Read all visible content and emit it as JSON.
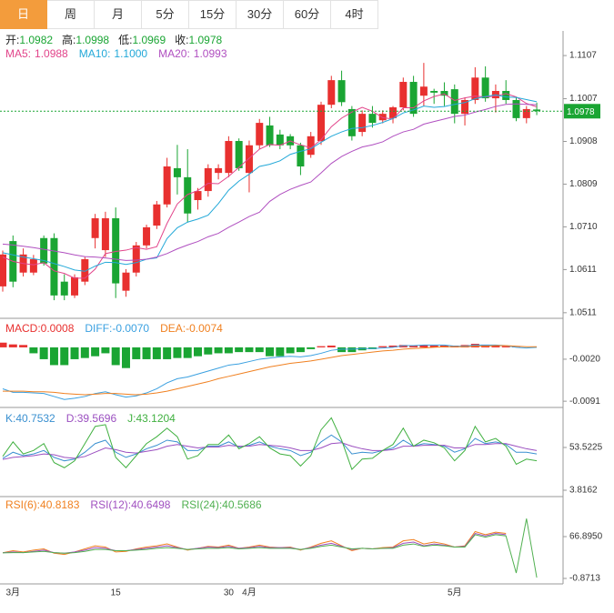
{
  "tabs": [
    "日",
    "周",
    "月",
    "5分",
    "15分",
    "30分",
    "60分",
    "4时"
  ],
  "active_tab": 0,
  "chart_data": [
    {
      "type": "candlestick",
      "categories": [
        null,
        "3月",
        null,
        null,
        null,
        null,
        null,
        null,
        null,
        null,
        null,
        "15",
        null,
        null,
        null,
        null,
        null,
        null,
        null,
        null,
        null,
        null,
        "30",
        null,
        "4月",
        null,
        null,
        null,
        null,
        null,
        null,
        null,
        null,
        null,
        null,
        null,
        null,
        null,
        null,
        null,
        null,
        null,
        null,
        null,
        "5月",
        null,
        null,
        null,
        null,
        null,
        null,
        null,
        null
      ],
      "ohlc_readout": [
        {
          "label": "开:",
          "value": "1.0982"
        },
        {
          "label": "高:",
          "value": "1.0998"
        },
        {
          "label": "低:",
          "value": "1.0969"
        },
        {
          "label": "收:",
          "value": "1.0978"
        }
      ],
      "up_color": "#e8302f",
      "down_color": "#1aa533",
      "open": [
        1.0572,
        1.0677,
        1.0604,
        1.0604,
        1.0684,
        1.0684,
        1.0583,
        1.0551,
        1.0583,
        1.0684,
        1.0656,
        1.073,
        1.0562,
        1.0604,
        1.0667,
        1.0713,
        1.0762,
        1.0846,
        1.0825,
        1.0772,
        1.0793,
        1.0835,
        1.0835,
        1.0909,
        1.0835,
        1.0899,
        1.0945,
        1.0924,
        1.092,
        1.0899,
        1.0877,
        1.0909,
        1.0993,
        1.105,
        1.0983,
        1.093,
        1.0972,
        1.0957,
        1.0962,
        1.0987,
        1.1046,
        1.1014,
        1.1025,
        1.1025,
        1.1029,
        1.0972,
        1.1004,
        1.1056,
        1.1008,
        1.1025,
        1.1004,
        1.0962,
        1.0982
      ],
      "high": [
        1.0655,
        1.069,
        1.066,
        1.0645,
        1.069,
        1.0695,
        1.06,
        1.06,
        1.064,
        1.074,
        1.0745,
        1.0755,
        1.0612,
        1.0675,
        1.0715,
        1.077,
        1.087,
        1.09,
        1.089,
        1.08,
        1.0855,
        1.0855,
        1.092,
        1.0915,
        1.091,
        1.096,
        1.0965,
        1.0935,
        1.0925,
        1.0905,
        1.093,
        1.1,
        1.106,
        1.1072,
        1.099,
        1.098,
        1.099,
        1.098,
        1.099,
        1.1056,
        1.106,
        1.109,
        1.103,
        1.1045,
        1.104,
        1.101,
        1.108,
        1.1082,
        1.104,
        1.105,
        1.101,
        1.099,
        1.0998
      ],
      "low": [
        1.056,
        1.057,
        1.0595,
        1.0598,
        1.062,
        1.054,
        1.054,
        1.0545,
        1.0575,
        1.066,
        1.064,
        1.0545,
        1.0548,
        1.0595,
        1.066,
        1.0705,
        1.0755,
        1.0785,
        1.072,
        1.075,
        1.078,
        1.082,
        1.0825,
        1.084,
        1.079,
        1.089,
        1.0895,
        1.089,
        1.089,
        1.083,
        1.087,
        1.09,
        1.0985,
        1.099,
        1.091,
        1.092,
        1.094,
        1.095,
        1.095,
        1.098,
        1.0965,
        1.099,
        1.0995,
        1.099,
        1.095,
        1.0945,
        1.0995,
        1.1,
        1.0975,
        1.0995,
        1.0955,
        1.095,
        1.0969
      ],
      "close": [
        1.0646,
        1.0583,
        1.0646,
        1.0635,
        1.0625,
        1.0551,
        1.0551,
        1.0593,
        1.0635,
        1.073,
        1.073,
        1.0579,
        1.0604,
        1.0667,
        1.0709,
        1.0762,
        1.085,
        1.0825,
        1.0741,
        1.0793,
        1.0846,
        1.0846,
        1.0909,
        1.0846,
        1.0899,
        1.0951,
        1.0899,
        1.0899,
        1.0899,
        1.085,
        1.092,
        1.0993,
        1.105,
        1.0999,
        1.092,
        1.0972,
        1.0951,
        1.0972,
        1.0987,
        1.1046,
        1.0972,
        1.1035,
        1.1021,
        1.1014,
        1.0972,
        1.1004,
        1.1056,
        1.1008,
        1.1025,
        1.1004,
        1.0962,
        1.0983,
        1.0978
      ],
      "series": [
        {
          "name": "MA5:",
          "readout": "1.0988",
          "color": "#e2448a",
          "values": [
            1.064,
            1.063,
            1.0625,
            1.0622,
            1.0627,
            1.0608,
            1.0602,
            1.0591,
            1.0591,
            1.0612,
            1.0648,
            1.0653,
            1.0656,
            1.0662,
            1.0658,
            1.0664,
            1.0718,
            1.0763,
            1.0785,
            1.0794,
            1.0811,
            1.081,
            1.0827,
            1.0848,
            1.0869,
            1.089,
            1.0901,
            1.0899,
            1.0909,
            1.09,
            1.0893,
            1.0912,
            1.0942,
            1.0962,
            1.0976,
            1.0987,
            1.0978,
            1.0963,
            1.096,
            1.0986,
            1.0986,
            1.1002,
            1.1012,
            1.1018,
            1.1003,
            1.1009,
            1.1013,
            1.1011,
            1.1013,
            1.1019,
            1.1011,
            1.0996,
            1.0988
          ]
        },
        {
          "name": "MA10:",
          "readout": "1.1000",
          "color": "#22a8d8",
          "values": [
            1.065,
            1.0645,
            1.064,
            1.0636,
            1.0632,
            1.0625,
            1.0618,
            1.061,
            1.0607,
            1.0619,
            1.0628,
            1.0627,
            1.0623,
            1.0627,
            1.0635,
            1.0638,
            1.0683,
            1.0708,
            1.0721,
            1.0728,
            1.0737,
            1.0764,
            1.0795,
            1.0816,
            1.0832,
            1.085,
            1.0855,
            1.0863,
            1.0878,
            1.0885,
            1.0891,
            1.0906,
            1.092,
            1.093,
            1.0938,
            1.094,
            1.0945,
            1.0952,
            1.0961,
            1.0974,
            1.0981,
            1.099,
            1.0987,
            1.0989,
            1.0994,
            1.0998,
            1.1007,
            1.1012,
            1.1016,
            1.1011,
            1.101,
            1.1005,
            1.1
          ]
        },
        {
          "name": "MA20:",
          "readout": "1.0993",
          "color": "#b04fc0",
          "values": [
            1.067,
            1.0668,
            1.0665,
            1.0662,
            1.0658,
            1.0654,
            1.065,
            1.0645,
            1.0641,
            1.064,
            1.0638,
            1.0635,
            1.0632,
            1.0633,
            1.0635,
            1.064,
            1.0648,
            1.0659,
            1.0668,
            1.0676,
            1.0687,
            1.0695,
            1.0709,
            1.0721,
            1.0734,
            1.0744,
            1.0769,
            1.0785,
            1.0797,
            1.0806,
            1.0814,
            1.0835,
            1.0857,
            1.0873,
            1.0885,
            1.0895,
            1.09,
            1.0907,
            1.092,
            1.093,
            1.0936,
            1.0948,
            1.0954,
            1.096,
            1.0966,
            1.0969,
            1.0976,
            1.0982,
            1.0989,
            1.0994,
            1.0995,
            1.0994,
            1.0993
          ]
        }
      ],
      "last_price": 1.0978,
      "ylim": [
        1.0498,
        1.1162
      ],
      "yticks": [
        1.1107,
        1.1007,
        1.0908,
        1.0809,
        {
          "value": 1.071,
          "label": "1.0710"
        },
        1.0611,
        1.0511
      ]
    },
    {
      "type": "macd",
      "histogram": {
        "name": "MACD:",
        "readout": "0.0008",
        "up_color": "#e8302f",
        "down_color": "#1aa533",
        "values": [
          0.0008,
          0.0005,
          0.0004,
          -0.001,
          -0.002,
          -0.003,
          -0.003,
          -0.002,
          -0.0018,
          -0.0015,
          -0.001,
          -0.003,
          -0.0035,
          -0.002,
          -0.002,
          -0.002,
          -0.002,
          -0.0018,
          -0.0018,
          -0.0015,
          -0.0012,
          -0.001,
          -0.001,
          -0.0008,
          -0.0008,
          -0.0008,
          -0.0015,
          -0.0015,
          -0.001,
          -0.0008,
          -0.0003,
          0.0002,
          0.0003,
          -0.0008,
          -0.0008,
          -0.0005,
          -0.0003,
          0.0002,
          0.0003,
          0.0004,
          0.0003,
          0.0004,
          0.0003,
          0.0003,
          0.0003,
          0.0004,
          0.0006,
          0.0004,
          0.0003,
          0.0002,
          0.0001,
          0.0,
          0.0
        ]
      },
      "series": [
        {
          "name": "DIFF:",
          "readout": "-0.0070",
          "color": "#3aa0e0",
          "values": [
            -0.007,
            -0.0076,
            -0.0076,
            -0.0077,
            -0.0078,
            -0.0083,
            -0.0088,
            -0.0086,
            -0.0083,
            -0.0078,
            -0.0075,
            -0.008,
            -0.0084,
            -0.0082,
            -0.0077,
            -0.007,
            -0.006,
            -0.0053,
            -0.005,
            -0.0045,
            -0.004,
            -0.0035,
            -0.003,
            -0.0028,
            -0.0024,
            -0.002,
            -0.0018,
            -0.0016,
            -0.0015,
            -0.0016,
            -0.0014,
            -0.001,
            -0.0005,
            -0.0003,
            -0.0003,
            -0.0002,
            -0.0002,
            -0.0001,
            0.0,
            0.0003,
            0.0003,
            0.0004,
            0.0004,
            0.0004,
            0.0002,
            0.0002,
            0.0004,
            0.0004,
            0.0004,
            0.0003,
            0.0,
            -0.0001,
            0.0
          ]
        },
        {
          "name": "DEA:",
          "readout": "-0.0074",
          "color": "#f08020",
          "values": [
            -0.0074,
            -0.0074,
            -0.0074,
            -0.0075,
            -0.0075,
            -0.0076,
            -0.0078,
            -0.0079,
            -0.008,
            -0.0079,
            -0.0078,
            -0.0078,
            -0.0079,
            -0.008,
            -0.0079,
            -0.0077,
            -0.0074,
            -0.007,
            -0.0066,
            -0.0062,
            -0.0058,
            -0.0053,
            -0.0049,
            -0.0045,
            -0.0041,
            -0.0037,
            -0.0033,
            -0.003,
            -0.0027,
            -0.0025,
            -0.0023,
            -0.002,
            -0.0017,
            -0.0014,
            -0.0012,
            -0.001,
            -0.0008,
            -0.0006,
            -0.0005,
            -0.0003,
            -0.0002,
            -0.0001,
            0.0,
            0.0001,
            0.0001,
            0.0001,
            0.0002,
            0.0002,
            0.0003,
            0.0003,
            0.0002,
            0.0001,
            0.0001
          ]
        }
      ],
      "ylim": [
        -0.01,
        0.0046
      ],
      "yticks": [
        {
          "value": -0.002,
          "label": "-0.0020"
        },
        -0.0091
      ]
    },
    {
      "type": "line",
      "series": [
        {
          "name": "K:",
          "readout": "40.7532",
          "color": "#3a90d0",
          "values": [
            40.75,
            48,
            44,
            46,
            50,
            42,
            38,
            40,
            48,
            58,
            62,
            48,
            42,
            46,
            52,
            56,
            62,
            60,
            50,
            50,
            55,
            55,
            60,
            54,
            56,
            60,
            55,
            52,
            50,
            44,
            48,
            60,
            68,
            60,
            46,
            48,
            47,
            50,
            53,
            62,
            55,
            58,
            57,
            55,
            48,
            52,
            64,
            58,
            60,
            57,
            48,
            48,
            46
          ]
        },
        {
          "name": "D:",
          "readout": "39.5696",
          "color": "#9b4fc0",
          "values": [
            39.57,
            42,
            43,
            44,
            46,
            45,
            42,
            41,
            43,
            48,
            53,
            51,
            48,
            47,
            49,
            51,
            55,
            57,
            55,
            53,
            54,
            54,
            56,
            55,
            55,
            57,
            56,
            55,
            53,
            50,
            50,
            53,
            58,
            59,
            55,
            52,
            50,
            50,
            51,
            55,
            55,
            56,
            56,
            56,
            53,
            53,
            57,
            57,
            58,
            58,
            55,
            52,
            50
          ]
        },
        {
          "name": "J:",
          "readout": "43.1204",
          "color": "#40b040",
          "values": [
            43.12,
            60,
            46,
            50,
            58,
            36,
            30,
            38,
            58,
            78,
            80,
            42,
            30,
            44,
            58,
            66,
            76,
            66,
            40,
            44,
            57,
            57,
            68,
            52,
            58,
            66,
            53,
            46,
            44,
            32,
            44,
            74,
            88,
            62,
            28,
            40,
            41,
            50,
            57,
            76,
            55,
            62,
            59,
            53,
            38,
            50,
            78,
            60,
            64,
            55,
            34,
            40,
            38
          ]
        }
      ],
      "ylim": [
        -2.5,
        97.9
      ],
      "yticks": [
        53.5225,
        3.8162
      ]
    },
    {
      "type": "line",
      "series": [
        {
          "name": "RSI(6):",
          "readout": "40.8183",
          "color": "#f08020",
          "values": [
            40.82,
            44,
            42,
            45,
            47,
            40,
            38,
            42,
            47,
            52,
            50,
            42,
            43,
            47,
            50,
            52,
            55,
            50,
            45,
            48,
            51,
            50,
            53,
            48,
            50,
            53,
            50,
            49,
            50,
            45,
            50,
            56,
            60,
            52,
            44,
            48,
            47,
            49,
            50,
            60,
            62,
            55,
            58,
            55,
            50,
            52,
            75,
            70,
            74,
            72,
            null,
            null,
            null
          ]
        },
        {
          "name": "RSI(12):",
          "readout": "40.6498",
          "color": "#a050c0",
          "values": [
            40.65,
            42,
            41,
            43,
            45,
            41,
            40,
            42,
            45,
            49,
            48,
            44,
            44,
            46,
            48,
            50,
            52,
            49,
            46,
            48,
            50,
            49,
            51,
            48,
            49,
            51,
            49,
            49,
            49,
            46,
            49,
            53,
            56,
            51,
            46,
            48,
            47,
            48,
            49,
            56,
            58,
            52,
            55,
            53,
            50,
            51,
            72,
            68,
            72,
            70,
            null,
            null,
            null
          ]
        },
        {
          "name": "RSI(24):",
          "readout": "40.5686",
          "color": "#50b050",
          "values": [
            40.57,
            41,
            41,
            42,
            43,
            41,
            40,
            41,
            43,
            46,
            46,
            44,
            44,
            45,
            46,
            48,
            49,
            48,
            46,
            47,
            48,
            48,
            49,
            47,
            48,
            49,
            48,
            48,
            48,
            46,
            48,
            51,
            53,
            50,
            47,
            48,
            47,
            48,
            48,
            53,
            55,
            51,
            53,
            52,
            50,
            50,
            70,
            66,
            70,
            68,
            8,
            96,
            0.5
          ]
        }
      ],
      "ylim": [
        -9.7,
        130.2
      ],
      "yticks": [
        {
          "value": 66.895,
          "label": "66.8950"
        },
        -0.8713
      ]
    }
  ]
}
